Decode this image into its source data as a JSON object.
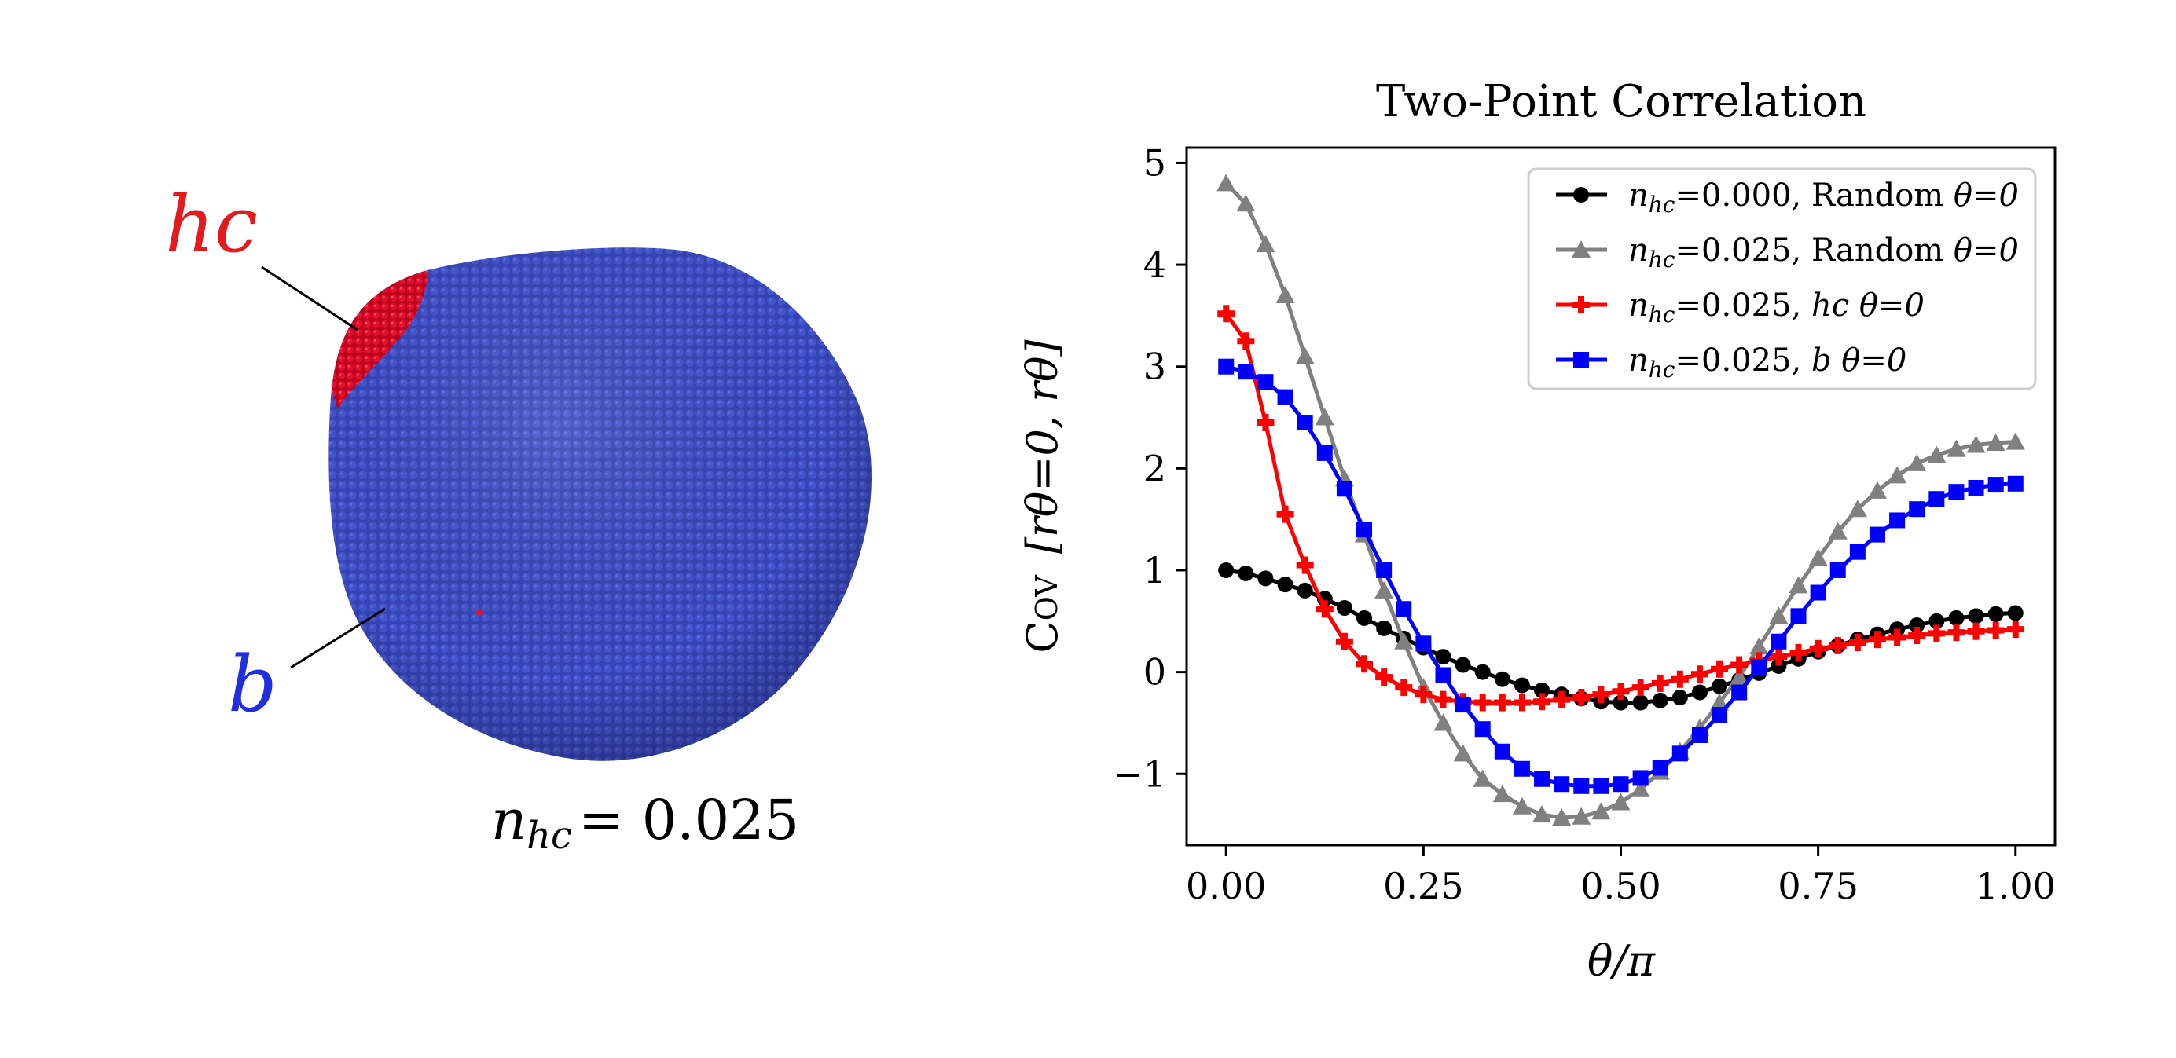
{
  "left_panel": {
    "hc_label": "hc",
    "b_label": "b",
    "caption_var": "n",
    "caption_sub": "hc",
    "caption_eq": "= 0.025",
    "colors": {
      "hc": "#e8102c",
      "b": "#3340b8",
      "hc_label": "#e41a1c",
      "b_label": "#2030e0"
    }
  },
  "chart_data": {
    "type": "line",
    "title": "Two-Point Correlation",
    "xlabel": "θ/π",
    "ylabel_base": "Cov",
    "ylabel_args": "[rθ=0, rθ]",
    "xlim": [
      -0.05,
      1.05
    ],
    "ylim": [
      -1.7,
      5.15
    ],
    "xticks": [
      0.0,
      0.25,
      0.5,
      0.75,
      1.0
    ],
    "xtick_labels": [
      "0.00",
      "0.25",
      "0.50",
      "0.75",
      "1.00"
    ],
    "yticks": [
      -1,
      0,
      1,
      2,
      3,
      4,
      5
    ],
    "ytick_labels": [
      "−1",
      "0",
      "1",
      "2",
      "3",
      "4",
      "5"
    ],
    "grid": false,
    "legend_position": "top-right",
    "x": [
      0.0,
      0.025,
      0.05,
      0.075,
      0.1,
      0.125,
      0.15,
      0.175,
      0.2,
      0.225,
      0.25,
      0.275,
      0.3,
      0.325,
      0.35,
      0.375,
      0.4,
      0.425,
      0.45,
      0.475,
      0.5,
      0.525,
      0.55,
      0.575,
      0.6,
      0.625,
      0.65,
      0.675,
      0.7,
      0.725,
      0.75,
      0.775,
      0.8,
      0.825,
      0.85,
      0.875,
      0.9,
      0.925,
      0.95,
      0.975,
      1.0
    ],
    "series": [
      {
        "name": "n_hc=0.000, Random θ=0",
        "legend_var": "n",
        "legend_sub": "hc",
        "legend_rest": "=0.000, Random ",
        "legend_theta": "θ=0",
        "color": "#000000",
        "marker": "circle",
        "values": [
          1.0,
          0.97,
          0.92,
          0.86,
          0.8,
          0.72,
          0.63,
          0.53,
          0.43,
          0.33,
          0.24,
          0.15,
          0.07,
          0.0,
          -0.07,
          -0.13,
          -0.18,
          -0.22,
          -0.26,
          -0.29,
          -0.3,
          -0.3,
          -0.28,
          -0.25,
          -0.2,
          -0.14,
          -0.08,
          -0.01,
          0.06,
          0.13,
          0.2,
          0.26,
          0.32,
          0.37,
          0.42,
          0.46,
          0.5,
          0.53,
          0.55,
          0.57,
          0.58
        ]
      },
      {
        "name": "n_hc=0.025, Random θ=0",
        "legend_var": "n",
        "legend_sub": "hc",
        "legend_rest": "=0.025, Random ",
        "legend_theta": "θ=0",
        "color": "#808080",
        "marker": "triangle",
        "values": [
          4.8,
          4.6,
          4.2,
          3.7,
          3.1,
          2.5,
          1.9,
          1.35,
          0.8,
          0.3,
          -0.15,
          -0.5,
          -0.8,
          -1.05,
          -1.2,
          -1.32,
          -1.4,
          -1.43,
          -1.42,
          -1.37,
          -1.28,
          -1.15,
          -0.98,
          -0.78,
          -0.55,
          -0.3,
          -0.05,
          0.25,
          0.55,
          0.85,
          1.12,
          1.38,
          1.6,
          1.78,
          1.93,
          2.05,
          2.13,
          2.19,
          2.23,
          2.25,
          2.26
        ]
      },
      {
        "name": "n_hc=0.025, hc θ=0",
        "legend_var": "n",
        "legend_sub": "hc",
        "legend_rest": "=0.025, ",
        "legend_hc": "hc",
        "legend_theta": " θ=0",
        "color": "#ff0000",
        "marker": "plus",
        "values": [
          3.52,
          3.25,
          2.45,
          1.55,
          1.05,
          0.62,
          0.3,
          0.08,
          -0.05,
          -0.15,
          -0.22,
          -0.27,
          -0.29,
          -0.3,
          -0.3,
          -0.3,
          -0.29,
          -0.27,
          -0.25,
          -0.22,
          -0.19,
          -0.15,
          -0.11,
          -0.07,
          -0.02,
          0.03,
          0.07,
          0.11,
          0.15,
          0.19,
          0.23,
          0.26,
          0.29,
          0.32,
          0.34,
          0.36,
          0.38,
          0.39,
          0.4,
          0.41,
          0.42
        ]
      },
      {
        "name": "n_hc=0.025, b θ=0",
        "legend_var": "n",
        "legend_sub": "hc",
        "legend_rest": "=0.025, ",
        "legend_hc": "b",
        "legend_theta": " θ=0",
        "color": "#0000ff",
        "marker": "square",
        "values": [
          3.0,
          2.95,
          2.85,
          2.7,
          2.45,
          2.15,
          1.8,
          1.4,
          1.0,
          0.62,
          0.28,
          -0.03,
          -0.32,
          -0.56,
          -0.78,
          -0.95,
          -1.05,
          -1.1,
          -1.12,
          -1.12,
          -1.1,
          -1.04,
          -0.94,
          -0.8,
          -0.62,
          -0.42,
          -0.2,
          0.05,
          0.3,
          0.55,
          0.78,
          1.0,
          1.18,
          1.35,
          1.49,
          1.6,
          1.7,
          1.77,
          1.81,
          1.84,
          1.85
        ]
      }
    ]
  }
}
